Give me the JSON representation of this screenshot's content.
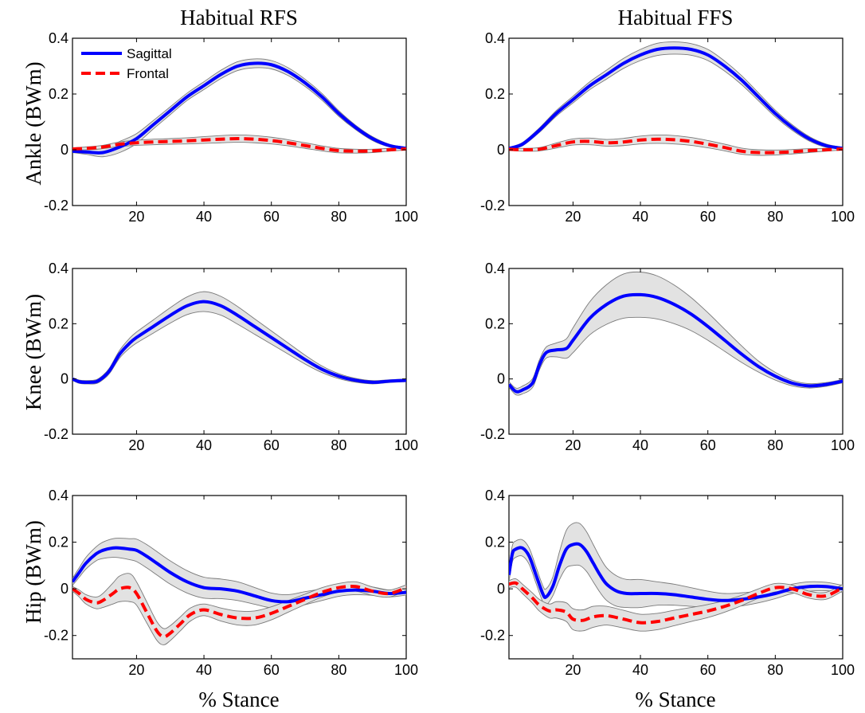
{
  "figure": {
    "column_titles": [
      "Habitual RFS",
      "Habitual FFS"
    ],
    "row_labels": [
      "Ankle (BWm)",
      "Knee (BWm)",
      "Hip (BWm)"
    ],
    "x_axis_label": "% Stance"
  },
  "chart_data": [
    {
      "type": "line",
      "panel": "ankle-rfs",
      "title": "Habitual RFS",
      "ylabel": "Ankle (BWm)",
      "xlabel": "",
      "xlim": [
        1,
        100
      ],
      "ylim": [
        -0.2,
        0.4
      ],
      "xticks": [
        20,
        40,
        60,
        80,
        100
      ],
      "yticks": [
        -0.2,
        0,
        0.2,
        0.4
      ],
      "ytick_labels": [
        "-0.2",
        "0",
        "0.2",
        "0.4"
      ],
      "legend": {
        "position": "top-left",
        "entries": [
          "Sagittal",
          "Frontal"
        ]
      },
      "series": [
        {
          "name": "Sagittal",
          "color": "#0000ff",
          "style": "solid",
          "x": [
            1,
            5,
            10,
            15,
            20,
            25,
            30,
            35,
            40,
            45,
            50,
            55,
            60,
            65,
            70,
            75,
            80,
            85,
            90,
            95,
            100
          ],
          "y": [
            -0.005,
            -0.008,
            -0.01,
            0.01,
            0.04,
            0.09,
            0.14,
            0.19,
            0.23,
            0.27,
            0.3,
            0.31,
            0.305,
            0.28,
            0.24,
            0.19,
            0.13,
            0.08,
            0.04,
            0.015,
            0.005
          ],
          "band": [
            0.005,
            0.008,
            0.015,
            0.02,
            0.018,
            0.015,
            0.014,
            0.013,
            0.014,
            0.015,
            0.016,
            0.016,
            0.015,
            0.014,
            0.013,
            0.012,
            0.01,
            0.008,
            0.007,
            0.005,
            0.004
          ]
        },
        {
          "name": "Frontal",
          "color": "#ff0000",
          "style": "dashed",
          "x": [
            1,
            5,
            10,
            15,
            20,
            25,
            30,
            35,
            40,
            45,
            50,
            55,
            60,
            65,
            70,
            75,
            80,
            85,
            90,
            95,
            100
          ],
          "y": [
            0.003,
            0.005,
            0.01,
            0.02,
            0.025,
            0.028,
            0.03,
            0.032,
            0.035,
            0.038,
            0.04,
            0.038,
            0.033,
            0.025,
            0.015,
            0.005,
            -0.003,
            -0.005,
            -0.004,
            0.0,
            0.003
          ],
          "band": [
            0.004,
            0.005,
            0.006,
            0.008,
            0.009,
            0.01,
            0.01,
            0.011,
            0.012,
            0.013,
            0.013,
            0.013,
            0.012,
            0.011,
            0.01,
            0.009,
            0.008,
            0.007,
            0.006,
            0.005,
            0.004
          ]
        }
      ]
    },
    {
      "type": "line",
      "panel": "ankle-ffs",
      "title": "Habitual FFS",
      "ylabel": "",
      "xlabel": "",
      "xlim": [
        1,
        100
      ],
      "ylim": [
        -0.2,
        0.4
      ],
      "xticks": [
        20,
        40,
        60,
        80,
        100
      ],
      "yticks": [
        -0.2,
        0,
        0.2,
        0.4
      ],
      "ytick_labels": [
        "-0.2",
        "0",
        "0.2",
        "0.4"
      ],
      "series": [
        {
          "name": "Sagittal",
          "color": "#0000ff",
          "style": "solid",
          "x": [
            1,
            5,
            10,
            15,
            20,
            25,
            30,
            35,
            40,
            45,
            50,
            55,
            60,
            65,
            70,
            75,
            80,
            85,
            90,
            95,
            100
          ],
          "y": [
            0.005,
            0.02,
            0.07,
            0.13,
            0.18,
            0.23,
            0.27,
            0.31,
            0.34,
            0.36,
            0.365,
            0.36,
            0.34,
            0.3,
            0.25,
            0.19,
            0.13,
            0.08,
            0.04,
            0.015,
            0.005
          ],
          "band": [
            0.004,
            0.006,
            0.008,
            0.01,
            0.012,
            0.014,
            0.016,
            0.018,
            0.02,
            0.022,
            0.022,
            0.021,
            0.02,
            0.018,
            0.016,
            0.014,
            0.012,
            0.01,
            0.008,
            0.006,
            0.004
          ]
        },
        {
          "name": "Frontal",
          "color": "#ff0000",
          "style": "dashed",
          "x": [
            1,
            5,
            10,
            15,
            20,
            25,
            30,
            35,
            40,
            45,
            50,
            55,
            60,
            65,
            70,
            75,
            80,
            85,
            90,
            95,
            100
          ],
          "y": [
            0.002,
            0.0,
            0.002,
            0.015,
            0.028,
            0.03,
            0.025,
            0.028,
            0.035,
            0.038,
            0.036,
            0.03,
            0.02,
            0.008,
            -0.005,
            -0.01,
            -0.01,
            -0.007,
            -0.003,
            0.0,
            0.003
          ],
          "band": [
            0.004,
            0.005,
            0.006,
            0.009,
            0.011,
            0.012,
            0.012,
            0.013,
            0.014,
            0.015,
            0.015,
            0.014,
            0.013,
            0.012,
            0.011,
            0.01,
            0.009,
            0.008,
            0.007,
            0.005,
            0.004
          ]
        }
      ]
    },
    {
      "type": "line",
      "panel": "knee-rfs",
      "title": "",
      "ylabel": "Knee (BWm)",
      "xlabel": "",
      "xlim": [
        1,
        100
      ],
      "ylim": [
        -0.2,
        0.4
      ],
      "xticks": [
        20,
        40,
        60,
        80,
        100
      ],
      "yticks": [
        -0.2,
        0,
        0.2,
        0.4
      ],
      "ytick_labels": [
        "-0.2",
        "0",
        "0.2",
        "0.4"
      ],
      "series": [
        {
          "name": "Sagittal",
          "color": "#0000ff",
          "style": "solid",
          "x": [
            1,
            3,
            5,
            8,
            10,
            12,
            15,
            18,
            20,
            25,
            30,
            35,
            40,
            45,
            50,
            55,
            60,
            65,
            70,
            75,
            80,
            85,
            90,
            95,
            100
          ],
          "y": [
            0.0,
            -0.01,
            -0.012,
            -0.01,
            0.005,
            0.03,
            0.09,
            0.13,
            0.15,
            0.19,
            0.23,
            0.265,
            0.28,
            0.265,
            0.23,
            0.19,
            0.15,
            0.11,
            0.07,
            0.035,
            0.01,
            -0.005,
            -0.012,
            -0.008,
            -0.005
          ],
          "band": [
            0.005,
            0.006,
            0.006,
            0.007,
            0.008,
            0.01,
            0.014,
            0.018,
            0.02,
            0.024,
            0.028,
            0.032,
            0.036,
            0.034,
            0.032,
            0.028,
            0.024,
            0.02,
            0.016,
            0.012,
            0.009,
            0.007,
            0.006,
            0.005,
            0.005
          ]
        }
      ]
    },
    {
      "type": "line",
      "panel": "knee-ffs",
      "title": "",
      "ylabel": "",
      "xlabel": "",
      "xlim": [
        1,
        100
      ],
      "ylim": [
        -0.2,
        0.4
      ],
      "xticks": [
        20,
        40,
        60,
        80,
        100
      ],
      "yticks": [
        -0.2,
        0,
        0.2,
        0.4
      ],
      "ytick_labels": [
        "-0.2",
        "0",
        "0.2",
        "0.4"
      ],
      "series": [
        {
          "name": "Sagittal",
          "color": "#0000ff",
          "style": "solid",
          "x": [
            1,
            3,
            5,
            8,
            10,
            12,
            15,
            18,
            20,
            25,
            30,
            35,
            40,
            45,
            50,
            55,
            60,
            65,
            70,
            75,
            80,
            85,
            90,
            95,
            100
          ],
          "y": [
            -0.02,
            -0.045,
            -0.04,
            -0.015,
            0.05,
            0.095,
            0.105,
            0.11,
            0.14,
            0.22,
            0.27,
            0.3,
            0.305,
            0.295,
            0.27,
            0.235,
            0.19,
            0.14,
            0.09,
            0.045,
            0.01,
            -0.015,
            -0.025,
            -0.02,
            -0.008
          ],
          "band": [
            0.01,
            0.012,
            0.014,
            0.016,
            0.018,
            0.02,
            0.025,
            0.035,
            0.045,
            0.06,
            0.072,
            0.08,
            0.082,
            0.078,
            0.07,
            0.06,
            0.05,
            0.04,
            0.03,
            0.02,
            0.014,
            0.01,
            0.008,
            0.007,
            0.006
          ]
        }
      ]
    },
    {
      "type": "line",
      "panel": "hip-rfs",
      "title": "",
      "ylabel": "Hip (BWm)",
      "xlabel": "% Stance",
      "xlim": [
        1,
        100
      ],
      "ylim": [
        -0.3,
        0.4
      ],
      "xticks": [
        20,
        40,
        60,
        80,
        100
      ],
      "yticks": [
        -0.2,
        0,
        0.2,
        0.4
      ],
      "ytick_labels": [
        "-0.2",
        "0",
        "0.2",
        "0.4"
      ],
      "series": [
        {
          "name": "Sagittal",
          "color": "#0000ff",
          "style": "solid",
          "x": [
            1,
            3,
            5,
            8,
            10,
            13,
            15,
            18,
            20,
            23,
            26,
            30,
            35,
            40,
            45,
            50,
            55,
            60,
            65,
            70,
            75,
            80,
            85,
            90,
            95,
            100
          ],
          "y": [
            0.03,
            0.07,
            0.11,
            0.15,
            0.165,
            0.175,
            0.175,
            0.17,
            0.165,
            0.14,
            0.11,
            0.07,
            0.03,
            0.005,
            0.0,
            -0.01,
            -0.03,
            -0.05,
            -0.055,
            -0.04,
            -0.025,
            -0.01,
            -0.005,
            -0.01,
            -0.02,
            -0.015
          ],
          "band": [
            0.015,
            0.02,
            0.025,
            0.03,
            0.035,
            0.04,
            0.042,
            0.045,
            0.048,
            0.05,
            0.05,
            0.05,
            0.048,
            0.045,
            0.042,
            0.04,
            0.036,
            0.032,
            0.03,
            0.028,
            0.025,
            0.022,
            0.02,
            0.018,
            0.015,
            0.012
          ]
        },
        {
          "name": "Frontal",
          "color": "#ff0000",
          "style": "dashed",
          "x": [
            1,
            3,
            5,
            8,
            10,
            13,
            15,
            18,
            20,
            23,
            26,
            28,
            30,
            33,
            36,
            40,
            45,
            50,
            55,
            60,
            65,
            70,
            75,
            80,
            85,
            90,
            95,
            100
          ],
          "y": [
            0.0,
            -0.02,
            -0.045,
            -0.06,
            -0.05,
            -0.02,
            0.0,
            0.005,
            -0.02,
            -0.1,
            -0.18,
            -0.205,
            -0.19,
            -0.15,
            -0.11,
            -0.09,
            -0.11,
            -0.125,
            -0.125,
            -0.105,
            -0.075,
            -0.045,
            -0.015,
            0.005,
            0.01,
            -0.01,
            -0.02,
            0.005
          ],
          "band": [
            0.01,
            0.015,
            0.02,
            0.025,
            0.03,
            0.045,
            0.055,
            0.06,
            0.05,
            0.045,
            0.04,
            0.035,
            0.032,
            0.03,
            0.028,
            0.025,
            0.028,
            0.03,
            0.03,
            0.028,
            0.025,
            0.022,
            0.02,
            0.018,
            0.02,
            0.018,
            0.015,
            0.012
          ]
        }
      ]
    },
    {
      "type": "line",
      "panel": "hip-ffs",
      "title": "",
      "ylabel": "",
      "xlabel": "% Stance",
      "xlim": [
        1,
        100
      ],
      "ylim": [
        -0.3,
        0.4
      ],
      "xticks": [
        20,
        40,
        60,
        80,
        100
      ],
      "yticks": [
        -0.2,
        0,
        0.2,
        0.4
      ],
      "ytick_labels": [
        "-0.2",
        "0",
        "0.2",
        "0.4"
      ],
      "series": [
        {
          "name": "Sagittal",
          "color": "#0000ff",
          "style": "solid",
          "x": [
            1,
            2,
            3,
            5,
            7,
            9,
            11,
            12,
            14,
            16,
            18,
            20,
            22,
            24,
            26,
            28,
            30,
            33,
            36,
            40,
            45,
            50,
            55,
            60,
            65,
            70,
            75,
            80,
            85,
            90,
            95,
            100
          ],
          "y": [
            0.06,
            0.15,
            0.17,
            0.175,
            0.14,
            0.06,
            -0.02,
            -0.035,
            0.01,
            0.1,
            0.17,
            0.19,
            0.19,
            0.16,
            0.11,
            0.06,
            0.02,
            -0.01,
            -0.02,
            -0.02,
            -0.02,
            -0.025,
            -0.035,
            -0.045,
            -0.05,
            -0.045,
            -0.035,
            -0.02,
            0.0,
            0.01,
            0.01,
            0.0
          ],
          "band": [
            0.03,
            0.035,
            0.035,
            0.035,
            0.035,
            0.035,
            0.035,
            0.035,
            0.04,
            0.06,
            0.08,
            0.09,
            0.09,
            0.085,
            0.08,
            0.075,
            0.07,
            0.065,
            0.06,
            0.06,
            0.05,
            0.045,
            0.04,
            0.035,
            0.03,
            0.028,
            0.025,
            0.022,
            0.02,
            0.02,
            0.018,
            0.015
          ]
        },
        {
          "name": "Frontal",
          "color": "#ff0000",
          "style": "dashed",
          "x": [
            1,
            3,
            5,
            8,
            10,
            13,
            15,
            18,
            20,
            23,
            26,
            30,
            35,
            40,
            45,
            50,
            55,
            60,
            65,
            70,
            75,
            80,
            85,
            90,
            95,
            100
          ],
          "y": [
            0.02,
            0.025,
            0.0,
            -0.04,
            -0.07,
            -0.095,
            -0.09,
            -0.1,
            -0.13,
            -0.135,
            -0.12,
            -0.115,
            -0.13,
            -0.145,
            -0.14,
            -0.125,
            -0.11,
            -0.095,
            -0.075,
            -0.05,
            -0.02,
            0.005,
            0.0,
            -0.025,
            -0.03,
            0.005
          ],
          "band": [
            0.015,
            0.018,
            0.02,
            0.022,
            0.025,
            0.03,
            0.035,
            0.04,
            0.045,
            0.045,
            0.045,
            0.04,
            0.038,
            0.036,
            0.035,
            0.033,
            0.03,
            0.028,
            0.025,
            0.022,
            0.02,
            0.018,
            0.016,
            0.015,
            0.015,
            0.014
          ]
        }
      ]
    }
  ]
}
